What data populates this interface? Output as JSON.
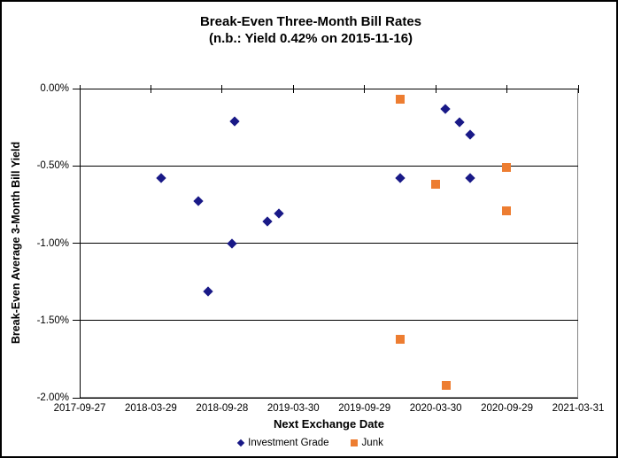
{
  "chart_data": {
    "type": "scatter",
    "title": "Break-Even Three-Month Bill Rates",
    "subtitle": "(n.b.: Yield 0.42% on 2015-11-16)",
    "xlabel": "Next Exchange Date",
    "ylabel": "Break-Even Average 3-Month Bill Yield",
    "x_axis": {
      "min": "2017-09-27",
      "max": "2021-03-31",
      "tick_labels": [
        "2017-09-27",
        "2018-03-29",
        "2018-09-28",
        "2019-03-30",
        "2019-09-29",
        "2020-03-30",
        "2020-09-29",
        "2021-03-31"
      ]
    },
    "y_axis": {
      "min": -2.0,
      "max": 0.0,
      "tick_labels": [
        "0.00%",
        "-0.50%",
        "-1.00%",
        "-1.50%",
        "-2.00%"
      ],
      "tick_values": [
        0,
        -0.5,
        -1.0,
        -1.5,
        -2.0
      ],
      "unit": "percent"
    },
    "grid": "horizontal",
    "legend_position": "bottom",
    "series": [
      {
        "name": "Investment Grade",
        "marker": "diamond",
        "color": "#191987",
        "points": [
          {
            "date": "2018-04-25",
            "yield_pct": -0.58
          },
          {
            "date": "2018-07-30",
            "yield_pct": -0.73
          },
          {
            "date": "2018-08-22",
            "yield_pct": -1.31
          },
          {
            "date": "2018-10-23",
            "yield_pct": -1.0
          },
          {
            "date": "2018-10-31",
            "yield_pct": -0.21
          },
          {
            "date": "2019-01-22",
            "yield_pct": -0.86
          },
          {
            "date": "2019-02-20",
            "yield_pct": -0.81
          },
          {
            "date": "2019-12-30",
            "yield_pct": -0.58
          },
          {
            "date": "2020-04-24",
            "yield_pct": -0.13
          },
          {
            "date": "2020-05-29",
            "yield_pct": -0.22
          },
          {
            "date": "2020-06-27",
            "yield_pct": -0.3
          },
          {
            "date": "2020-06-27",
            "yield_pct": -0.58
          }
        ]
      },
      {
        "name": "Junk",
        "marker": "square",
        "color": "#ED7D31",
        "points": [
          {
            "date": "2019-12-30",
            "yield_pct": -0.07
          },
          {
            "date": "2019-12-30",
            "yield_pct": -1.62
          },
          {
            "date": "2020-03-29",
            "yield_pct": -0.62
          },
          {
            "date": "2020-04-27",
            "yield_pct": -1.92
          },
          {
            "date": "2020-09-28",
            "yield_pct": -0.51
          },
          {
            "date": "2020-09-28",
            "yield_pct": -0.79
          }
        ]
      }
    ]
  },
  "colors": {
    "investment_grade": "#191987",
    "junk": "#ED7D31",
    "axis_line": "#000000",
    "plot_border": "#868686",
    "background": "#FFFFFF"
  }
}
